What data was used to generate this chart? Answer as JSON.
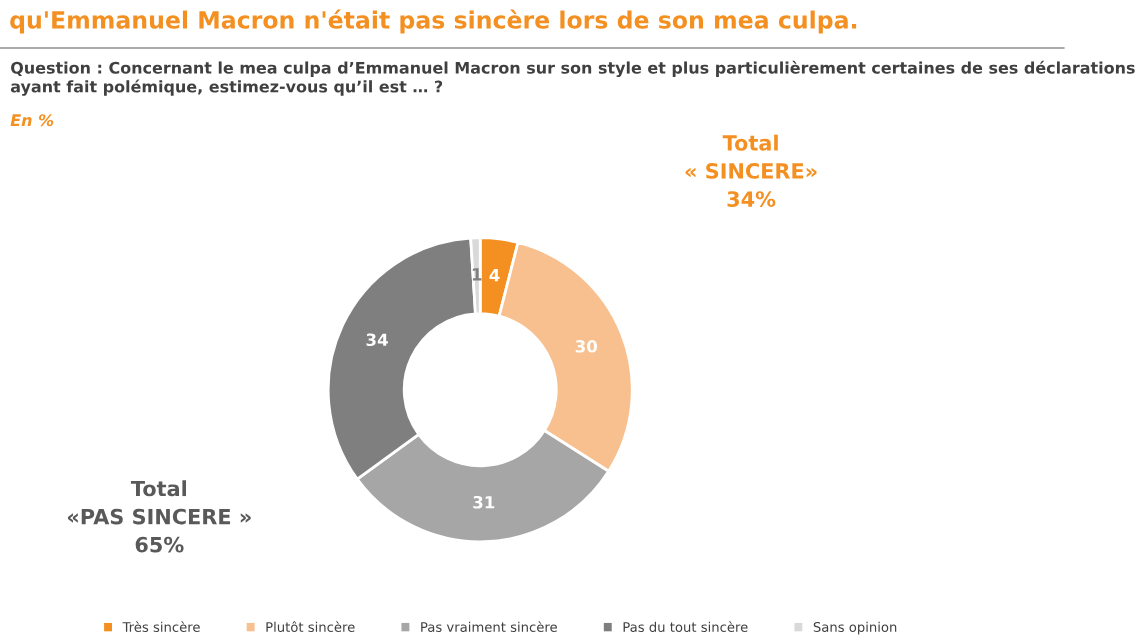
{
  "chart_data": {
    "type": "donut",
    "title": "qu'Emmanuel Macron n'était pas sincère lors de son mea culpa.",
    "subtitle": "Question : Concernant le mea culpa d’Emmanuel Macron sur son style et plus particulièrement certaines de ses déclarations ayant fait polémique, estimez-vous qu’il est … ?",
    "annotations": [
      "En %",
      "Total\n« SINCERE»\n34%",
      "Total\n«PAS SINCERE »\n65%"
    ],
    "categories": [
      "Très sincère",
      "Plutôt sincère",
      "Pas vraiment sincère",
      "Pas du tout sincère",
      "Sans opinion"
    ],
    "values": [
      4,
      30,
      31,
      34,
      1
    ],
    "colors": [
      "#f39021",
      "#f8c08f",
      "#a6a6a6",
      "#7f7f7f",
      "#d9d9d9"
    ],
    "data_labels": true,
    "legend": "bottom"
  }
}
